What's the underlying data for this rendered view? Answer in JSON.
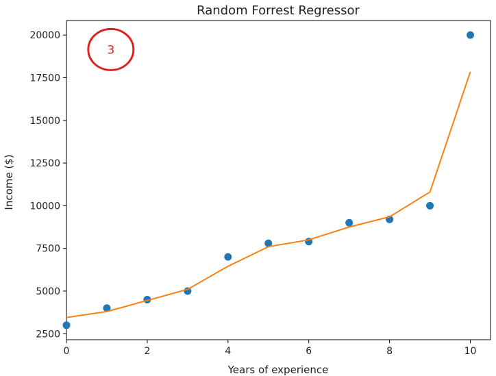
{
  "chart_data": {
    "type": "scatter",
    "title": "Random Forrest Regressor",
    "xlabel": "Years of experience",
    "ylabel": "Income ($)",
    "xlim": [
      0,
      10.5
    ],
    "ylim": [
      2150,
      20850
    ],
    "xticks": [
      0,
      2,
      4,
      6,
      8,
      10
    ],
    "yticks": [
      2500,
      5000,
      7500,
      10000,
      12500,
      15000,
      17500,
      20000
    ],
    "grid": false,
    "series": [
      {
        "type": "scatter",
        "color": "#1f77b4",
        "x": [
          0,
          1,
          2,
          3,
          4,
          5,
          6,
          7,
          8,
          9,
          10
        ],
        "y": [
          3000,
          4000,
          4500,
          5000,
          7000,
          7800,
          7900,
          9000,
          9200,
          10000,
          20000
        ]
      },
      {
        "type": "line",
        "color": "#ff7f0e",
        "x": [
          0,
          1,
          2,
          3,
          4,
          5,
          6,
          7,
          8,
          9,
          10
        ],
        "y": [
          3450,
          3800,
          4450,
          5100,
          6450,
          7600,
          8000,
          8750,
          9350,
          10800,
          17850
        ]
      }
    ],
    "annotations": [
      {
        "text": "3",
        "x": 1.1,
        "y": 19150,
        "color": "#dd2222",
        "shape": "circle"
      }
    ]
  }
}
